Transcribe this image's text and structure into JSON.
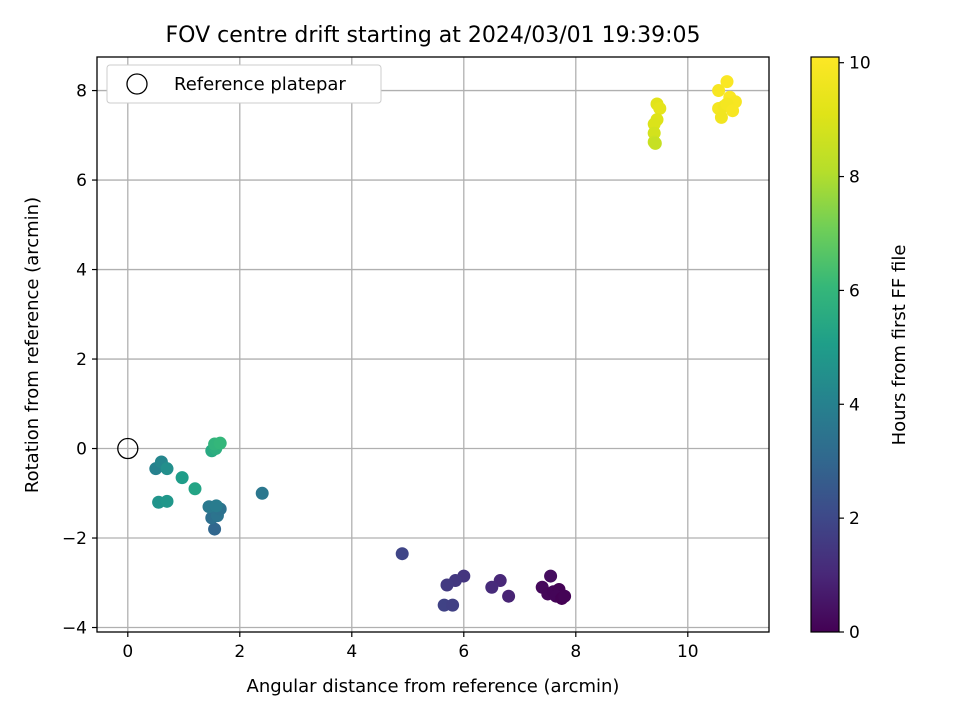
{
  "chart_data": {
    "type": "scatter",
    "title": "FOV centre drift starting at 2024/03/01 19:39:05",
    "xlabel": "Angular distance from reference (arcmin)",
    "ylabel": "Rotation from reference (arcmin)",
    "xlim": [
      -0.55,
      11.45
    ],
    "ylim": [
      -4.1,
      8.75
    ],
    "xticks": [
      0,
      2,
      4,
      6,
      8,
      10
    ],
    "xtick_labels": [
      "0",
      "2",
      "4",
      "6",
      "8",
      "10"
    ],
    "yticks": [
      -4,
      -2,
      0,
      2,
      4,
      6,
      8
    ],
    "ytick_labels": [
      "−4",
      "−2",
      "0",
      "2",
      "4",
      "6",
      "8"
    ],
    "grid": true,
    "legend": {
      "position": "top-left",
      "entries": [
        "Reference platepar"
      ]
    },
    "reference_point": {
      "x": 0,
      "y": 0
    },
    "colorbar": {
      "label": "Hours from first FF file",
      "colormap": "viridis",
      "range": [
        0,
        10.1
      ],
      "ticks": [
        0,
        2,
        4,
        6,
        8,
        10
      ],
      "tick_labels": [
        "0",
        "2",
        "4",
        "6",
        "8",
        "10"
      ]
    },
    "points": [
      {
        "x": 7.55,
        "y": -2.85,
        "c": 0.3
      },
      {
        "x": 7.4,
        "y": -3.1,
        "c": 0.2
      },
      {
        "x": 7.5,
        "y": -3.25,
        "c": 0.15
      },
      {
        "x": 7.6,
        "y": -3.2,
        "c": 0.1
      },
      {
        "x": 7.7,
        "y": -3.15,
        "c": 0.05
      },
      {
        "x": 7.65,
        "y": -3.3,
        "c": 0.1
      },
      {
        "x": 7.75,
        "y": -3.35,
        "c": 0.0
      },
      {
        "x": 7.8,
        "y": -3.3,
        "c": 0.05
      },
      {
        "x": 6.65,
        "y": -2.95,
        "c": 1.0
      },
      {
        "x": 6.5,
        "y": -3.1,
        "c": 1.1
      },
      {
        "x": 6.8,
        "y": -3.3,
        "c": 0.9
      },
      {
        "x": 6.0,
        "y": -2.85,
        "c": 1.4
      },
      {
        "x": 5.85,
        "y": -2.95,
        "c": 1.5
      },
      {
        "x": 5.7,
        "y": -3.05,
        "c": 1.55
      },
      {
        "x": 5.65,
        "y": -3.5,
        "c": 1.8
      },
      {
        "x": 5.8,
        "y": -3.5,
        "c": 1.75
      },
      {
        "x": 4.9,
        "y": -2.35,
        "c": 1.9
      },
      {
        "x": 2.4,
        "y": -1.0,
        "c": 3.6
      },
      {
        "x": 1.55,
        "y": -1.8,
        "c": 3.0
      },
      {
        "x": 1.5,
        "y": -1.55,
        "c": 3.3
      },
      {
        "x": 1.6,
        "y": -1.5,
        "c": 3.5
      },
      {
        "x": 1.65,
        "y": -1.35,
        "c": 3.4
      },
      {
        "x": 1.45,
        "y": -1.3,
        "c": 3.7
      },
      {
        "x": 1.58,
        "y": -1.28,
        "c": 3.8
      },
      {
        "x": 0.55,
        "y": -1.2,
        "c": 4.7
      },
      {
        "x": 0.7,
        "y": -1.18,
        "c": 4.8
      },
      {
        "x": 0.5,
        "y": -0.45,
        "c": 4.0
      },
      {
        "x": 0.6,
        "y": -0.3,
        "c": 4.2
      },
      {
        "x": 0.7,
        "y": -0.45,
        "c": 4.5
      },
      {
        "x": 0.97,
        "y": -0.65,
        "c": 5.0
      },
      {
        "x": 1.2,
        "y": -0.9,
        "c": 5.3
      },
      {
        "x": 1.5,
        "y": -0.05,
        "c": 5.5
      },
      {
        "x": 1.57,
        "y": 0.0,
        "c": 5.7
      },
      {
        "x": 1.55,
        "y": 0.1,
        "c": 5.9
      },
      {
        "x": 1.65,
        "y": 0.12,
        "c": 6.0
      },
      {
        "x": 9.45,
        "y": 7.7,
        "c": 9.2
      },
      {
        "x": 9.5,
        "y": 7.6,
        "c": 9.3
      },
      {
        "x": 9.45,
        "y": 7.35,
        "c": 9.1
      },
      {
        "x": 9.4,
        "y": 7.25,
        "c": 9.0
      },
      {
        "x": 9.4,
        "y": 7.05,
        "c": 8.8
      },
      {
        "x": 9.4,
        "y": 6.85,
        "c": 8.6
      },
      {
        "x": 9.42,
        "y": 6.82,
        "c": 8.5
      },
      {
        "x": 10.55,
        "y": 8.0,
        "c": 9.9
      },
      {
        "x": 10.7,
        "y": 8.2,
        "c": 10.0
      },
      {
        "x": 10.75,
        "y": 7.85,
        "c": 10.0
      },
      {
        "x": 10.85,
        "y": 7.75,
        "c": 9.9
      },
      {
        "x": 10.55,
        "y": 7.6,
        "c": 9.8
      },
      {
        "x": 10.65,
        "y": 7.65,
        "c": 9.7
      },
      {
        "x": 10.7,
        "y": 7.7,
        "c": 9.8
      },
      {
        "x": 10.8,
        "y": 7.55,
        "c": 9.9
      },
      {
        "x": 10.6,
        "y": 7.4,
        "c": 9.7
      }
    ]
  }
}
